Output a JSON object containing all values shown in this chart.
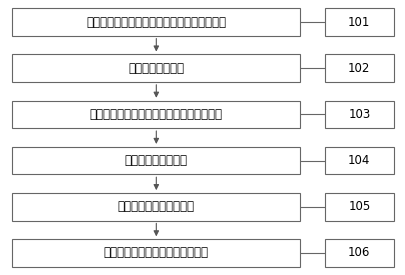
{
  "boxes": [
    {
      "label": "大层、砂组界限构造解释，建立初步构造模型",
      "num": "101"
    },
    {
      "label": "地质初步对比分层",
      "num": "102"
    },
    {
      "label": "主要含油小层构造解释，建立精细构造模型",
      "num": "103"
    },
    {
      "label": "交替式精细地层对比",
      "num": "104"
    },
    {
      "label": "全区闭合解释、构造成图",
      "num": "105"
    },
    {
      "label": "编制小层平面图并对分层进行检验",
      "num": "106"
    }
  ],
  "box_color": "#ffffff",
  "box_edge_color": "#666666",
  "arrow_color": "#555555",
  "line_color": "#666666",
  "text_color": "#000000",
  "bg_color": "#ffffff",
  "font_size": 8.5,
  "num_font_size": 8.5
}
